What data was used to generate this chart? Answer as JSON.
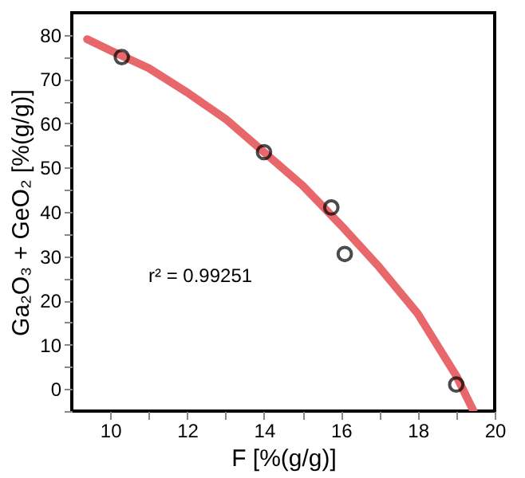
{
  "chart_data": {
    "type": "scatter",
    "xlabel": "F [%(g/g)]",
    "ylabel": "Ga₂O₃ + GeO₂ [%(g/g)]",
    "xlim": [
      9,
      20
    ],
    "ylim": [
      -5,
      85
    ],
    "xticks": [
      10,
      {
        "value": 11,
        "label": null
      },
      12,
      {
        "value": 13,
        "label": null
      },
      14,
      {
        "value": 15,
        "label": null
      },
      16,
      {
        "value": 17,
        "label": null
      },
      18,
      {
        "value": 19,
        "label": null
      },
      20
    ],
    "yticks": [
      {
        "value": -5,
        "label": null
      },
      0,
      {
        "value": 5,
        "label": null
      },
      10,
      {
        "value": 15,
        "label": null
      },
      20,
      {
        "value": 25,
        "label": null
      },
      30,
      {
        "value": 35,
        "label": null
      },
      40,
      {
        "value": 45,
        "label": null
      },
      50,
      {
        "value": 55,
        "label": null
      },
      60,
      {
        "value": 65,
        "label": null
      },
      70,
      {
        "value": 75,
        "label": null
      },
      80
    ],
    "grid": false,
    "annotations": [
      "r² = 0.99251"
    ],
    "series": [
      {
        "type": "line",
        "color": "#e8676a",
        "line_style": "solid",
        "marker": "none",
        "x": [
          9.4,
          10,
          11,
          12,
          13,
          14,
          15,
          16,
          17,
          18,
          19,
          19.45
        ],
        "values": [
          79,
          76.5,
          72.5,
          67,
          61,
          53.5,
          46,
          37,
          27.5,
          17,
          3,
          -5
        ]
      },
      {
        "color": "#000000",
        "marker": "circle",
        "x": [
          10.3,
          14,
          15.75,
          16.1,
          19
        ],
        "values": [
          75,
          53.5,
          41,
          30.5,
          1
        ]
      }
    ]
  }
}
